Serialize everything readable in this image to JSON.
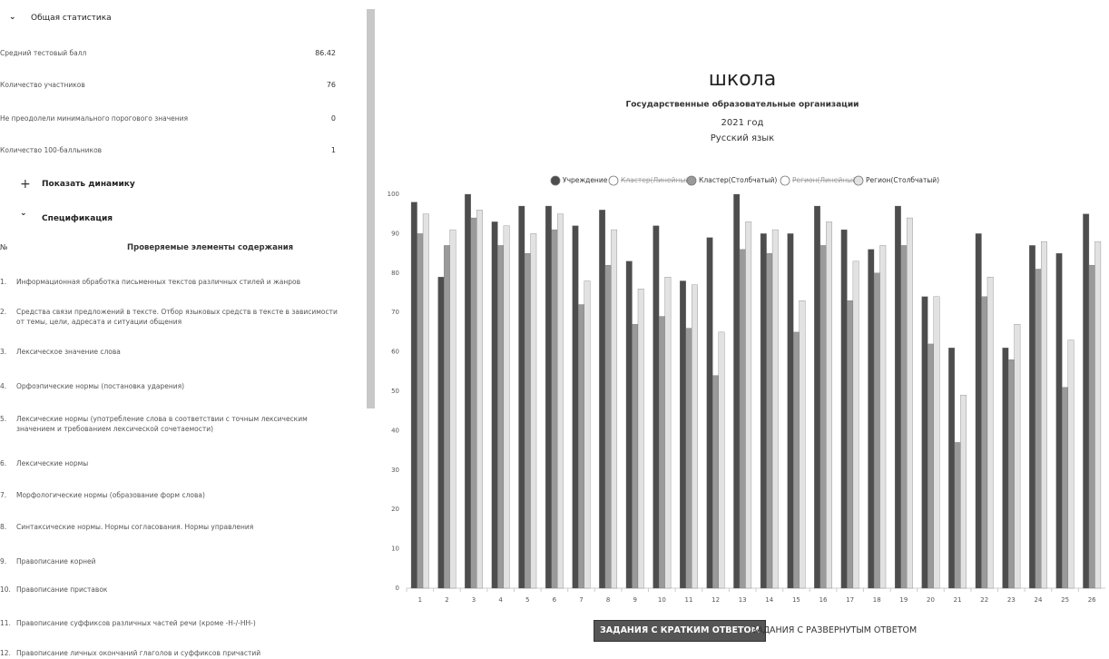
{
  "sidebar": {
    "general_title": "Общая статистика",
    "stats": [
      {
        "label": "Средний тестовый балл",
        "value": 86.42
      },
      {
        "label": "Количество участников",
        "value": 76
      },
      {
        "label": "Не преодолели минимального порогового значения",
        "value": 0
      },
      {
        "label": "Количество 100-балльников",
        "value": 1
      }
    ],
    "dynamics_toggle": "Показать динамику",
    "spec_title": "Спецификация",
    "table": {
      "header": [
        "№",
        "Проверяемые элементы содержания"
      ],
      "rows": [
        [
          "1.",
          "Информационная обработка письменных текстов различных стилей и жанров"
        ],
        [
          "2.",
          "Средства связи предложений в тексте. Отбор языковых средств в тексте в зависимости от темы, цели, адресата и ситуации общения"
        ],
        [
          "3.",
          "Лексическое значение слова"
        ],
        [
          "4.",
          "Орфоэпические нормы (постановка ударения)"
        ],
        [
          "5.",
          "Лексические нормы (употребление слова в соответствии с точным лексическим значением и требованием лексической сочетаемости)"
        ],
        [
          "6.",
          "Лексические нормы"
        ],
        [
          "7.",
          "Морфологические нормы (образование форм слова)"
        ],
        [
          "8.",
          "Синтаксические нормы. Нормы согласования. Нормы управления"
        ],
        [
          "9.",
          "Правописание корней"
        ],
        [
          "10.",
          "Правописание приставок"
        ],
        [
          "11.",
          "Правописание суффиксов различных частей речи (кроме -Н-/-НН-)"
        ],
        [
          "12.",
          "Правописание личных окончаний глаголов и суффиксов причастий"
        ]
      ]
    }
  },
  "chart_data": {
    "type": "bar",
    "title": "школа",
    "subtitles": [
      "Государственные образовательные организации",
      "2021 год",
      "Русский язык"
    ],
    "categories": [
      "1",
      "2",
      "3",
      "4",
      "5",
      "6",
      "7",
      "8",
      "9",
      "10",
      "11",
      "12",
      "13",
      "14",
      "15",
      "16",
      "17",
      "18",
      "19",
      "20",
      "21",
      "22",
      "23",
      "24",
      "25",
      "26"
    ],
    "series": [
      {
        "name": "Учреждение",
        "color": "#4d4d4d",
        "values": [
          98,
          79,
          100,
          93,
          97,
          97,
          92,
          96,
          83,
          92,
          78,
          89,
          100,
          90,
          90,
          97,
          91,
          86,
          97,
          74,
          61,
          90,
          61,
          87,
          85,
          95
        ]
      },
      {
        "name": "Кластер(Линейный)",
        "color": "#999999",
        "hidden": true
      },
      {
        "name": "Кластер(Столбчатый)",
        "color": "#9a9a9a",
        "values": [
          90,
          87,
          94,
          87,
          85,
          91,
          72,
          82,
          67,
          69,
          66,
          54,
          86,
          85,
          65,
          87,
          73,
          80,
          87,
          62,
          37,
          74,
          58,
          81,
          51,
          82
        ]
      },
      {
        "name": "Регион(Линейный)",
        "color": "#dddddd",
        "hidden": true
      },
      {
        "name": "Регион(Столбчатый)",
        "color": "#e2e2e2",
        "values": [
          95,
          91,
          96,
          92,
          90,
          95,
          78,
          91,
          76,
          79,
          77,
          65,
          93,
          91,
          73,
          93,
          83,
          87,
          94,
          74,
          49,
          79,
          67,
          88,
          63,
          88
        ]
      }
    ],
    "ylim": [
      0,
      100
    ],
    "yticks": [
      0,
      10,
      20,
      30,
      40,
      50,
      60,
      70,
      80,
      90,
      100
    ],
    "legend": "top",
    "grid": false
  },
  "tabs": [
    "ЗАДАНИЯ С КРАТКИМ ОТВЕТОМ",
    "ЗАДАНИЯ С РАЗВЕРНУТЫМ ОТВЕТОМ"
  ],
  "active_tab": 0
}
